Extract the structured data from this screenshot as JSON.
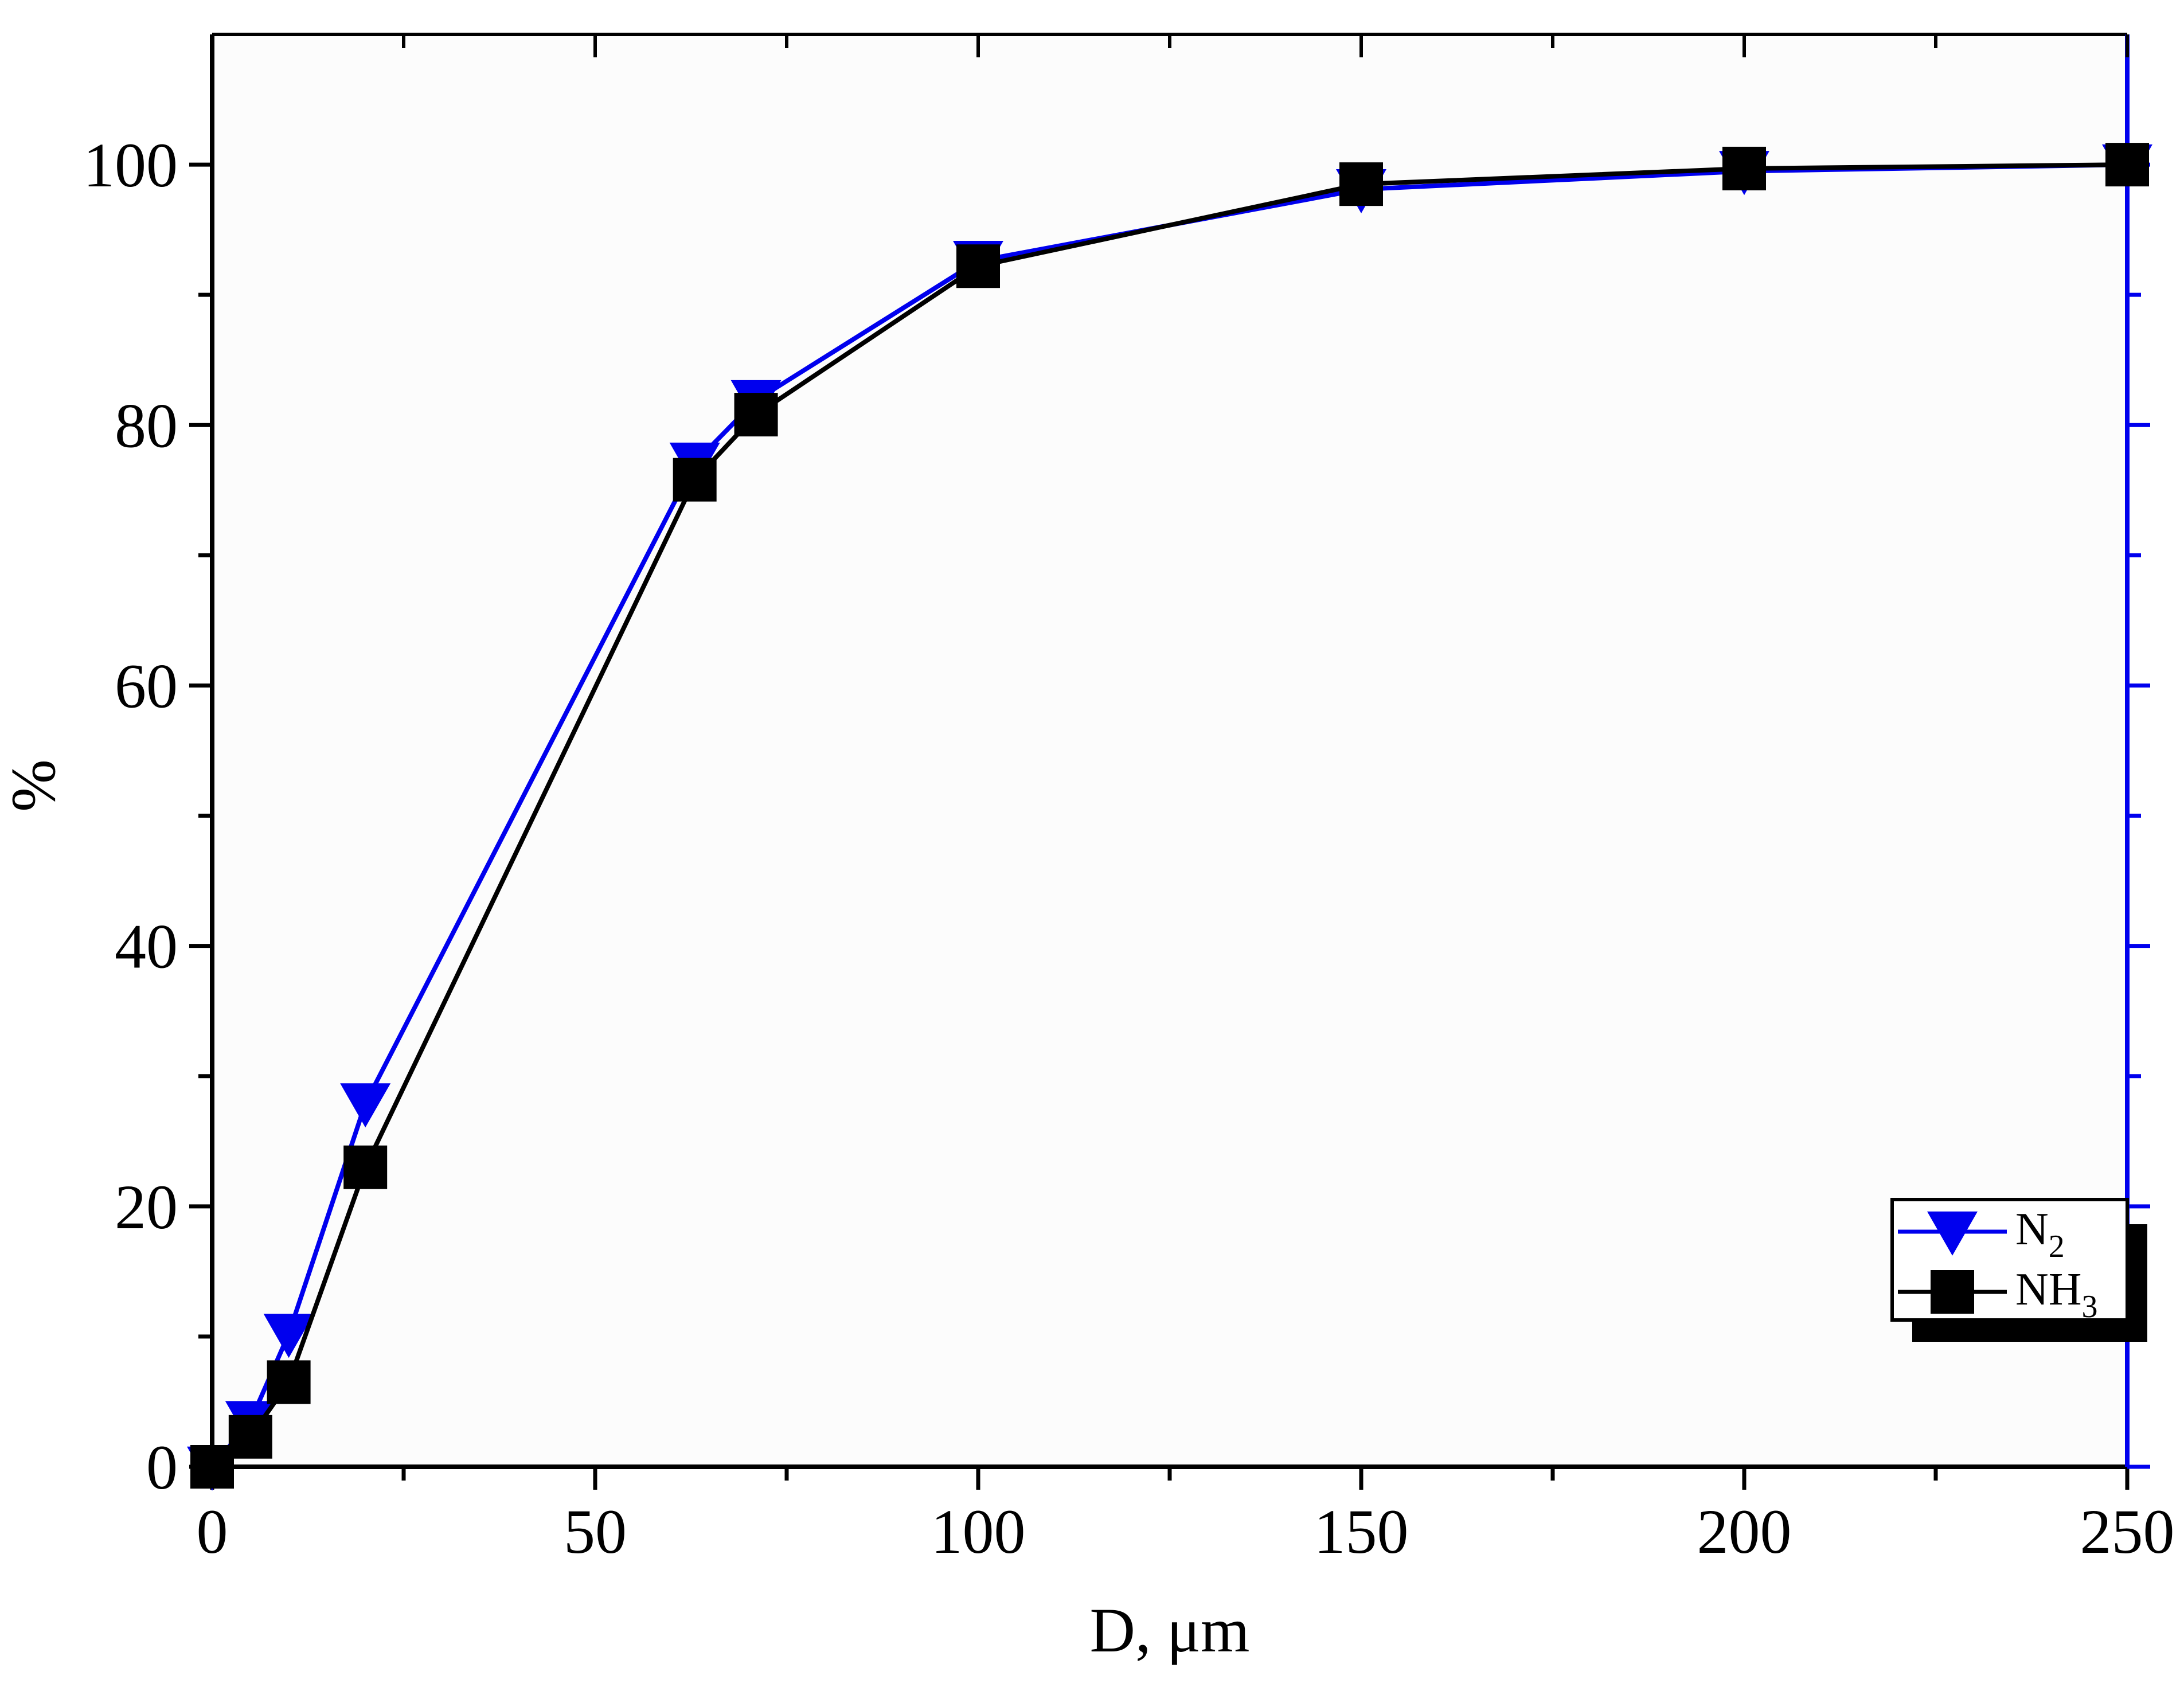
{
  "chart_data": {
    "type": "line",
    "xlabel": "D, μm",
    "ylabel": "%",
    "xlim": [
      0,
      250
    ],
    "ylim": [
      0,
      110
    ],
    "x_ticks": [
      "0",
      "50",
      "100",
      "150",
      "200",
      "250"
    ],
    "y_ticks": [
      "0",
      "20",
      "40",
      "60",
      "80",
      "100"
    ],
    "grid": false,
    "legend_position": "bottom-right",
    "series": [
      {
        "name": "N",
        "name_sub": "2",
        "color": "#0000ee",
        "marker": "triangle-down",
        "x": [
          0,
          5,
          10,
          20,
          63,
          71,
          100,
          150,
          200,
          250
        ],
        "y": [
          0,
          3.5,
          10.2,
          27.9,
          77.1,
          81.9,
          92.6,
          98.1,
          99.5,
          100
        ]
      },
      {
        "name": "NH",
        "name_sub": "3",
        "color": "#000000",
        "marker": "square",
        "x": [
          0,
          5,
          10,
          20,
          63,
          71,
          100,
          150,
          200,
          250
        ],
        "y": [
          0,
          2.3,
          6.5,
          23.0,
          75.8,
          80.8,
          92.2,
          98.5,
          99.7,
          100
        ]
      }
    ]
  }
}
